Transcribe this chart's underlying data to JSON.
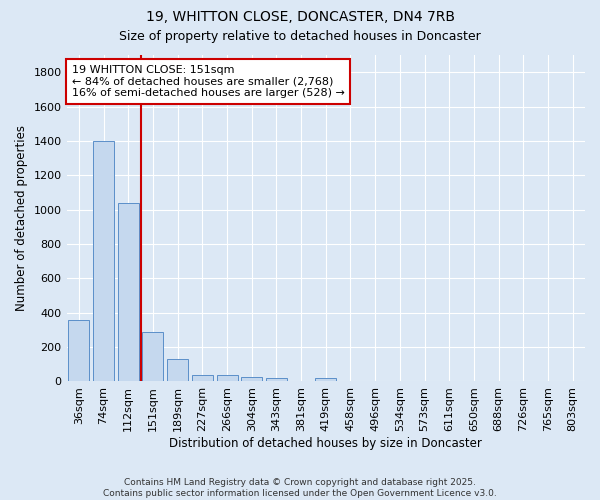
{
  "title_line1": "19, WHITTON CLOSE, DONCASTER, DN4 7RB",
  "title_line2": "Size of property relative to detached houses in Doncaster",
  "xlabel": "Distribution of detached houses by size in Doncaster",
  "ylabel": "Number of detached properties",
  "categories": [
    "36sqm",
    "74sqm",
    "112sqm",
    "151sqm",
    "189sqm",
    "227sqm",
    "266sqm",
    "304sqm",
    "343sqm",
    "381sqm",
    "419sqm",
    "458sqm",
    "496sqm",
    "534sqm",
    "573sqm",
    "611sqm",
    "650sqm",
    "688sqm",
    "726sqm",
    "765sqm",
    "803sqm"
  ],
  "values": [
    360,
    1400,
    1040,
    290,
    130,
    40,
    35,
    25,
    18,
    0,
    18,
    0,
    0,
    0,
    0,
    0,
    0,
    0,
    0,
    0,
    0
  ],
  "bar_color": "#c5d8ee",
  "bar_edge_color": "#5b8fc9",
  "vline_color": "#cc0000",
  "annotation_text": "19 WHITTON CLOSE: 151sqm\n← 84% of detached houses are smaller (2,768)\n16% of semi-detached houses are larger (528) →",
  "annotation_box_facecolor": "#ffffff",
  "annotation_box_edgecolor": "#cc0000",
  "ylim": [
    0,
    1900
  ],
  "yticks": [
    0,
    200,
    400,
    600,
    800,
    1000,
    1200,
    1400,
    1600,
    1800
  ],
  "background_color": "#dce8f5",
  "plot_bg_color": "#dce8f5",
  "grid_color": "#ffffff",
  "footer": "Contains HM Land Registry data © Crown copyright and database right 2025.\nContains public sector information licensed under the Open Government Licence v3.0.",
  "title_fontsize": 10,
  "subtitle_fontsize": 9,
  "axis_label_fontsize": 8.5,
  "tick_fontsize": 8,
  "annot_fontsize": 8,
  "footer_fontsize": 6.5
}
